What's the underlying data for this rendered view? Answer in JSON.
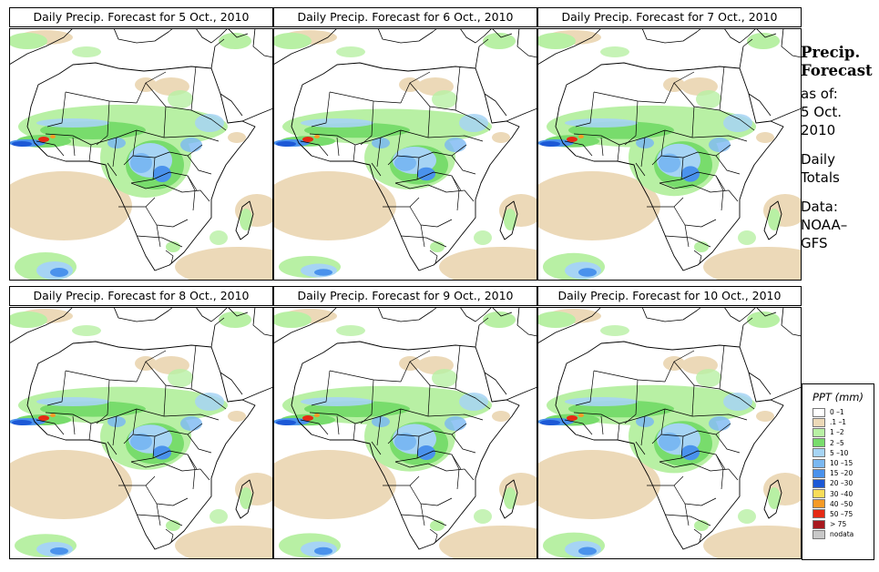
{
  "panels": [
    {
      "title": "Daily Precip. Forecast for  5 Oct., 2010",
      "intensity": 1.0
    },
    {
      "title": "Daily Precip. Forecast for  6 Oct., 2010",
      "intensity": 0.75
    },
    {
      "title": "Daily Precip. Forecast for  7 Oct., 2010",
      "intensity": 0.95
    },
    {
      "title": "Daily Precip. Forecast for  8 Oct., 2010",
      "intensity": 0.8
    },
    {
      "title": "Daily Precip. Forecast for  9 Oct., 2010",
      "intensity": 0.85
    },
    {
      "title": "Daily Precip. Forecast for  10 Oct., 2010",
      "intensity": 0.9
    }
  ],
  "side": {
    "heading_line1": "Precip.",
    "heading_line2": "Forecast",
    "as_of": "as of:",
    "date_line1": "5 Oct.",
    "date_line2": "2010",
    "totals_line1": "Daily",
    "totals_line2": "Totals",
    "data_line1": "Data:",
    "data_line2": "NOAA–",
    "data_line3": "GFS"
  },
  "legend": {
    "title": "PPT (mm)",
    "items": [
      {
        "label": "0 –1",
        "color": "#ffffff"
      },
      {
        "label": ".1 –1",
        "color": "#ecd9b8"
      },
      {
        "label": "1 –2",
        "color": "#b8f0a4"
      },
      {
        "label": "2 –5",
        "color": "#78dc6c"
      },
      {
        "label": "5 –10",
        "color": "#a6d4f4"
      },
      {
        "label": "10 –15",
        "color": "#7ab8f2"
      },
      {
        "label": "15 –20",
        "color": "#4a92ec"
      },
      {
        "label": "20 –30",
        "color": "#1c58d6"
      },
      {
        "label": "30 –40",
        "color": "#f8dc58"
      },
      {
        "label": "40 –50",
        "color": "#f59a26"
      },
      {
        "label": "50 –75",
        "color": "#e52a14"
      },
      {
        "label": "> 75",
        "color": "#a8181e"
      },
      {
        "label": "nodata",
        "color": "#c8c8c8"
      }
    ]
  }
}
